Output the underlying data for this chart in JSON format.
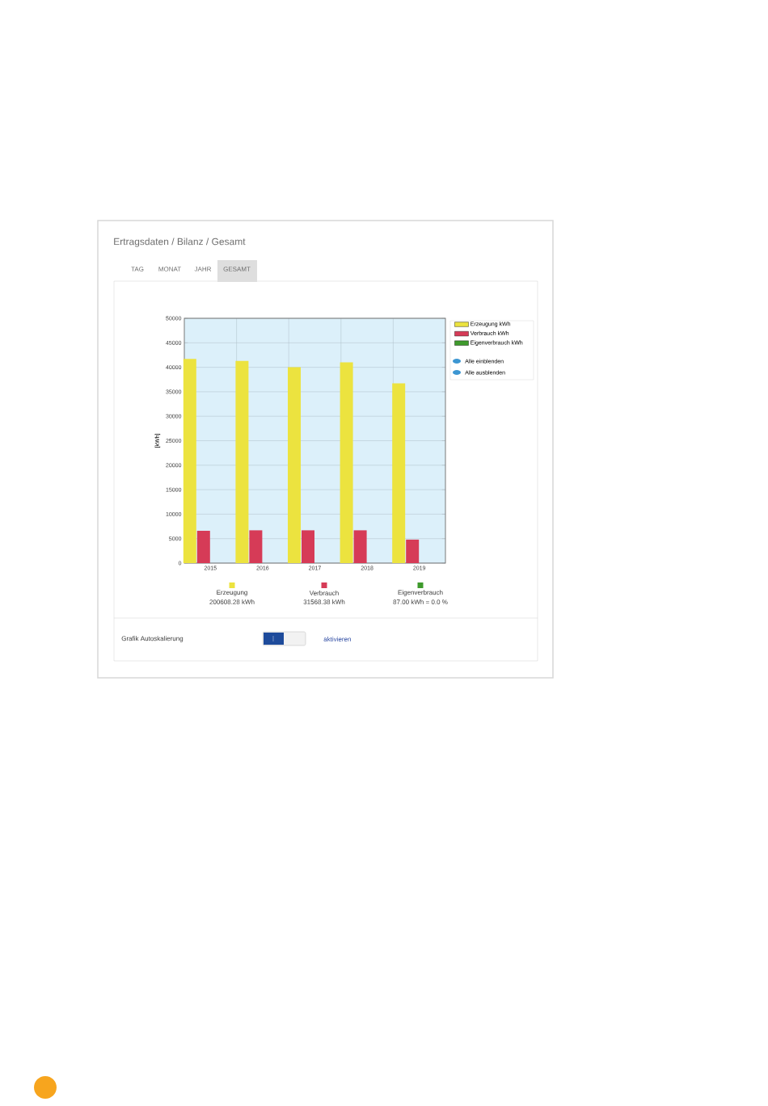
{
  "chart_data": {
    "type": "bar",
    "title": "Ertragsdaten / Bilanz / Gesamt",
    "ylabel": "[kWh]",
    "categories": [
      "2015",
      "2016",
      "2017",
      "2018",
      "2019"
    ],
    "series": [
      {
        "name": "Erzeugung kWh",
        "color": "#ece33f",
        "values": [
          41700,
          41300,
          40000,
          41000,
          36700
        ]
      },
      {
        "name": "Verbrauch kWh",
        "color": "#d63b57",
        "values": [
          6600,
          6700,
          6700,
          6700,
          4800
        ]
      },
      {
        "name": "Eigenverbrauch kWh",
        "color": "#3e9a2c",
        "values": [
          null,
          null,
          null,
          null,
          null
        ]
      }
    ],
    "ylim": [
      0,
      50000
    ],
    "yticks": [
      0,
      5000,
      10000,
      15000,
      20000,
      25000,
      30000,
      35000,
      40000,
      45000,
      50000
    ],
    "grid": true,
    "legend": "top right",
    "annotations": [
      "TAG",
      "MONAT",
      "JAHR",
      "GESAMT",
      "Alle einblenden",
      "Alle ausblenden",
      "Erzeugung",
      "200608.28 kWh",
      "Verbrauch",
      "31568.38 kWh",
      "Eigenverbrauch",
      "87.00 kWh = 0.0 %",
      "Grafik Autoskalierung",
      "aktivieren"
    ]
  }
}
